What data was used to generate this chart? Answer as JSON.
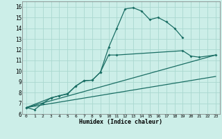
{
  "xlabel": "Humidex (Indice chaleur)",
  "background_color": "#cceee8",
  "grid_color": "#aad8d0",
  "line_color": "#1a6e64",
  "xlim": [
    -0.5,
    23.5
  ],
  "ylim": [
    6,
    16.5
  ],
  "xticks": [
    0,
    1,
    2,
    3,
    4,
    5,
    6,
    7,
    8,
    9,
    10,
    11,
    12,
    13,
    14,
    15,
    16,
    17,
    18,
    19,
    20,
    21,
    22,
    23
  ],
  "yticks": [
    6,
    7,
    8,
    9,
    10,
    11,
    12,
    13,
    14,
    15,
    16
  ],
  "line1_x": [
    0,
    1,
    2,
    3,
    4,
    5,
    6,
    7,
    8,
    9,
    10,
    11,
    12,
    13,
    14,
    15,
    16,
    17,
    18,
    19
  ],
  "line1_y": [
    6.6,
    6.4,
    7.0,
    7.5,
    7.7,
    7.9,
    8.6,
    9.1,
    9.15,
    9.9,
    12.2,
    14.0,
    15.8,
    15.9,
    15.6,
    14.8,
    15.0,
    14.6,
    14.0,
    13.1
  ],
  "line2_x": [
    0,
    3,
    4,
    5,
    6,
    7,
    8,
    9,
    10,
    11,
    19,
    20,
    21,
    23
  ],
  "line2_y": [
    6.6,
    7.5,
    7.7,
    7.85,
    8.6,
    9.1,
    9.15,
    9.9,
    11.5,
    11.5,
    11.9,
    11.4,
    11.3,
    11.5
  ],
  "line3_x": [
    0,
    23
  ],
  "line3_y": [
    6.6,
    11.5
  ],
  "line4_x": [
    0,
    23
  ],
  "line4_y": [
    6.6,
    9.5
  ]
}
